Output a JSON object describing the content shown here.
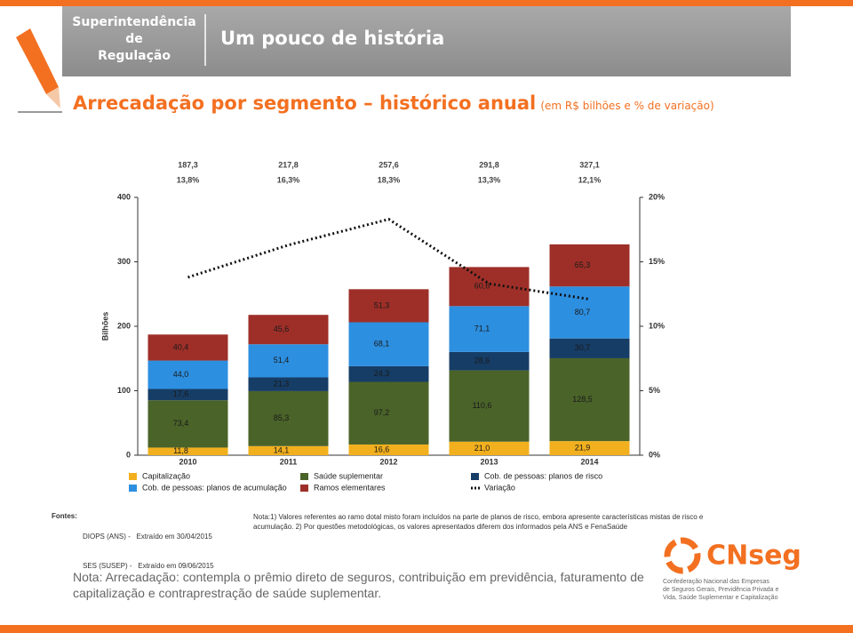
{
  "header": {
    "org": [
      "Superintendência",
      "de",
      "Regulação"
    ],
    "title": "Um pouco de história"
  },
  "heading": "Arrecadação por segmento – histórico anual",
  "heading_note": "(em R$ bilhões e % de variação)",
  "chart_data": {
    "type": "bar",
    "stacked": true,
    "categories": [
      "2010",
      "2011",
      "2012",
      "2013",
      "2014"
    ],
    "ylabel": "Bilhões",
    "ylim": [
      0,
      400
    ],
    "yticks": [
      0,
      100,
      200,
      300,
      400
    ],
    "y2lim": [
      0,
      20
    ],
    "y2ticks": [
      {
        "value": 0,
        "label": "0%"
      },
      {
        "value": 5,
        "label": "5%"
      },
      {
        "value": 10,
        "label": "10%"
      },
      {
        "value": 15,
        "label": "15%"
      },
      {
        "value": 20,
        "label": "20%"
      }
    ],
    "totals": {
      "values": [
        187.3,
        217.8,
        257.6,
        291.8,
        327.1
      ],
      "value_labels": [
        "187,3",
        "217,8",
        "257,6",
        "291,8",
        "327,1"
      ]
    },
    "series": [
      {
        "name": "Capitalização",
        "color": "#f2b01e",
        "values": [
          11.8,
          14.1,
          16.6,
          21.0,
          21.9
        ],
        "value_labels": [
          "11,8",
          "14,1",
          "16,6",
          "21,0",
          "21,9"
        ]
      },
      {
        "name": "Saúde suplementar",
        "color": "#4a6329",
        "values": [
          73.4,
          85.3,
          97.2,
          110.6,
          128.5
        ],
        "value_labels": [
          "73,4",
          "85,3",
          "97,2",
          "110,6",
          "128,5"
        ]
      },
      {
        "name": "Cob. de pessoas: planos de risco",
        "color": "#163d66",
        "values": [
          17.6,
          21.3,
          24.3,
          28.6,
          30.7
        ],
        "value_labels": [
          "17,6",
          "21,3",
          "24,3",
          "28,6",
          "30,7"
        ]
      },
      {
        "name": "Cob. de pessoas: planos de acumulação",
        "color": "#2d8fe0",
        "values": [
          44.0,
          51.4,
          68.1,
          71.1,
          80.7
        ],
        "value_labels": [
          "44,0",
          "51,4",
          "68,1",
          "71,1",
          "80,7"
        ]
      },
      {
        "name": "Ramos elementares",
        "color": "#9e2f28",
        "values": [
          40.4,
          45.6,
          51.3,
          60.6,
          65.3
        ],
        "value_labels": [
          "40,4",
          "45,6",
          "51,3",
          "60,6",
          "65,3"
        ]
      },
      {
        "name": "Variação",
        "color": "#111111",
        "type": "line",
        "style": "dotted",
        "axis": "y2",
        "values": [
          13.8,
          16.3,
          18.3,
          13.3,
          12.1
        ],
        "value_labels": [
          "13,8%",
          "16,3%",
          "18,3%",
          "13,3%",
          "12,1%"
        ]
      }
    ]
  },
  "sources": {
    "label": "Fontes:",
    "lines": [
      "DIOPS (ANS) -   Extraído em 30/04/2015",
      "SES (SUSEP) -   Extraído em 09/06/2015"
    ]
  },
  "chart_note": "Nota:1) Valores referentes ao ramo dotal misto foram incluídos na parte de planos de risco, embora apresente características mistas de risco e acumulação. 2) Por questões metodológicas, os valores apresentados diferem dos informados pela ANS e FenaSaúde",
  "footer_note": "Nota: Arrecadação: contempla o prêmio direto de seguros, contribuição em previdência, faturamento de capitalização e contraprestração de saúde suplementar.",
  "logo": {
    "name": "CNseg",
    "lines": [
      "Confederação Nacional das Empresas",
      "de Seguros Gerais, Previdência Privada e",
      "Vida, Saúde Suplementar e Capitalização"
    ]
  }
}
